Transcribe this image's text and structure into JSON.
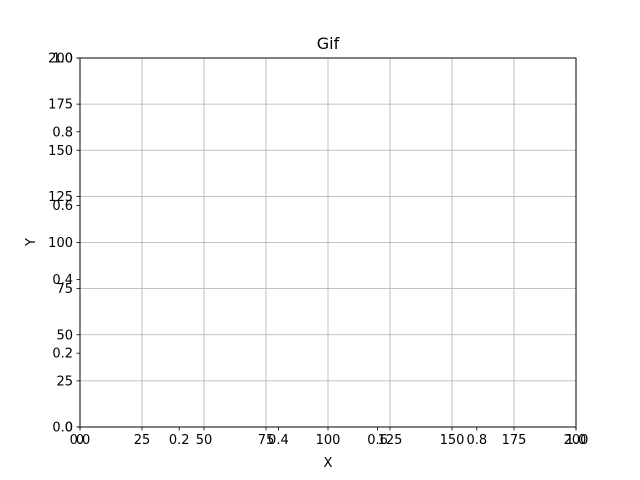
{
  "chart_data": {
    "type": "scatter",
    "title": "Gif",
    "xlabel": "X",
    "ylabel": "Y",
    "grid": true,
    "primary_axes": {
      "xlim": [
        0,
        200
      ],
      "ylim": [
        0,
        200
      ],
      "xticks": [
        0,
        25,
        50,
        75,
        100,
        125,
        150,
        175,
        200
      ],
      "yticks": [
        0,
        25,
        50,
        75,
        100,
        125,
        150,
        175,
        200
      ]
    },
    "secondary_axes": {
      "xlim": [
        0,
        1
      ],
      "ylim": [
        0,
        1
      ],
      "xticks": [
        "0.0",
        "0.2",
        "0.4",
        "0.6",
        "0.8",
        "1.0"
      ],
      "yticks": [
        "0.0",
        "0.2",
        "0.4",
        "0.6",
        "0.8",
        "1.0"
      ]
    },
    "series": []
  },
  "colors": {
    "grid": "#b0b0b0",
    "axes": "#000000",
    "background": "#ffffff"
  }
}
